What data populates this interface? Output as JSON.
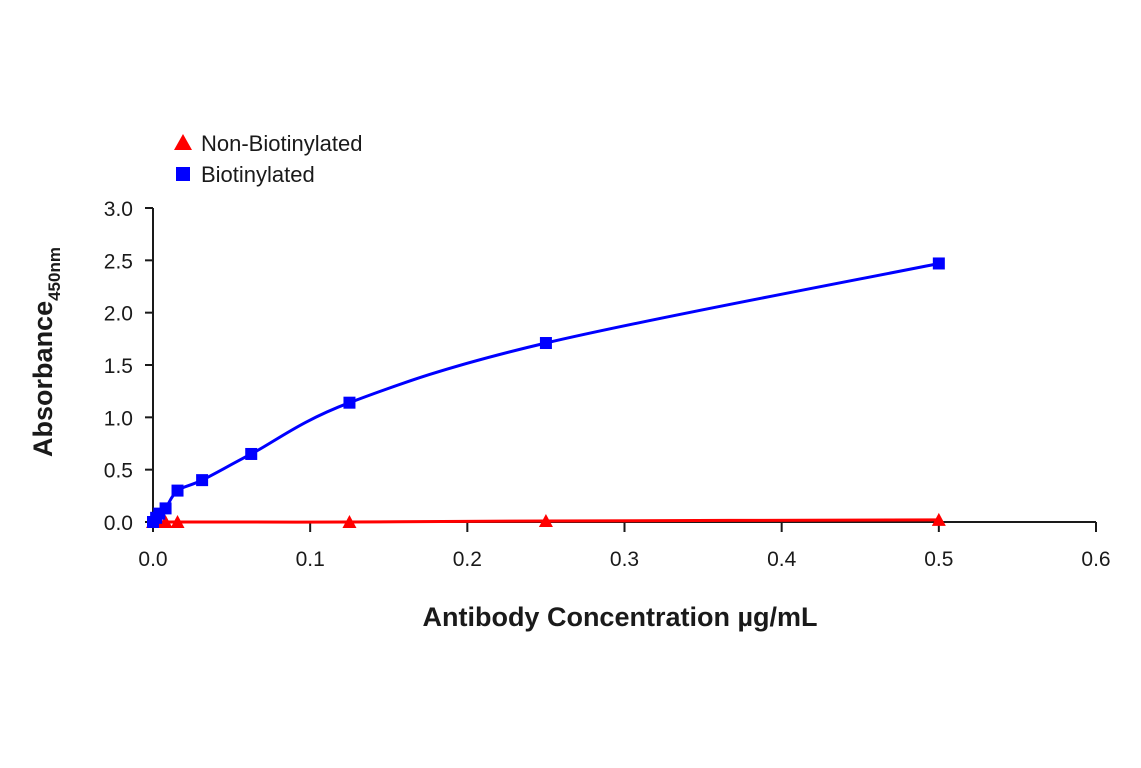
{
  "chart_data": {
    "type": "line",
    "xlabel": "Antibody Concentration µg/mL",
    "ylabel": "Absorbance",
    "ylabel_subscript": "450nm",
    "xlim": [
      0,
      0.6
    ],
    "ylim": [
      0,
      3.0
    ],
    "x_ticks": [
      "0.0",
      "0.1",
      "0.2",
      "0.3",
      "0.4",
      "0.5",
      "0.6"
    ],
    "y_ticks": [
      "0.0",
      "0.5",
      "1.0",
      "1.5",
      "2.0",
      "2.5",
      "3.0"
    ],
    "grid": false,
    "legend_position": "top-left",
    "series": [
      {
        "name": "Non-Biotinylated",
        "marker": "triangle",
        "color": "#ff0000",
        "x": [
          0.0,
          0.002,
          0.004,
          0.008,
          0.0156,
          0.125,
          0.25,
          0.5
        ],
        "y": [
          0.0,
          0.0,
          0.0,
          0.0,
          0.0,
          0.0,
          0.01,
          0.02
        ]
      },
      {
        "name": "Biotinylated",
        "marker": "square",
        "color": "#0000ff",
        "x": [
          0.0,
          0.002,
          0.004,
          0.008,
          0.0156,
          0.03125,
          0.0625,
          0.125,
          0.25,
          0.5
        ],
        "y": [
          0.0,
          0.04,
          0.08,
          0.13,
          0.3,
          0.4,
          0.65,
          1.14,
          1.71,
          2.47
        ]
      }
    ]
  }
}
